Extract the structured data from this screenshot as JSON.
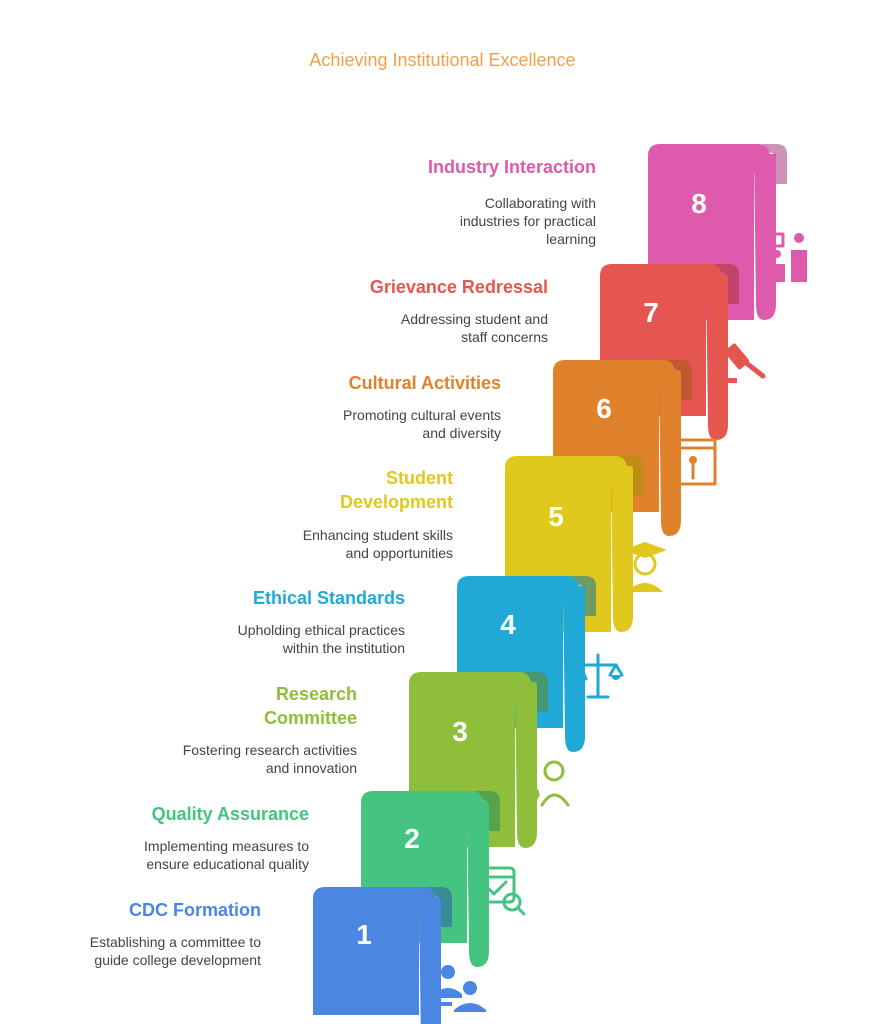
{
  "title": "Achieving Institutional Excellence",
  "steps": [
    {
      "number": "1",
      "title": "CDC Formation",
      "description": "Establishing a committee to guide college development",
      "color": "#4a86e2",
      "dark": "#2f5fa8",
      "icon": "committee-meeting-icon"
    },
    {
      "number": "2",
      "title": "Quality Assurance",
      "description": "Implementing measures to ensure educational quality",
      "color": "#44c480",
      "dark": "#2a8c57",
      "icon": "quality-check-icon"
    },
    {
      "number": "3",
      "title": "Research Committee",
      "description": "Fostering research activities and innovation",
      "color": "#8fbe3a",
      "dark": "#668a22",
      "icon": "researcher-icon"
    },
    {
      "number": "4",
      "title": "Ethical Standards",
      "description": "Upholding ethical practices within the institution",
      "color": "#20a9d6",
      "dark": "#16789a",
      "icon": "scales-icon"
    },
    {
      "number": "5",
      "title": "Student Development",
      "description": "Enhancing student skills and opportunities",
      "color": "#e0c81c",
      "dark": "#a8940c",
      "icon": "graduate-icon"
    },
    {
      "number": "6",
      "title": "Cultural Activities",
      "description": "Promoting cultural events and diversity",
      "color": "#e0812c",
      "dark": "#a65a17",
      "icon": "stage-performance-icon"
    },
    {
      "number": "7",
      "title": "Grievance Redressal",
      "description": "Addressing student and staff concerns",
      "color": "#e55650",
      "dark": "#a83530",
      "icon": "gavel-icon"
    },
    {
      "number": "8",
      "title": "Industry Interaction",
      "description": "Collaborating with industries for practical learning",
      "color": "#dd5aad",
      "dark": "#a53a7f",
      "icon": "presentation-icon"
    }
  ]
}
